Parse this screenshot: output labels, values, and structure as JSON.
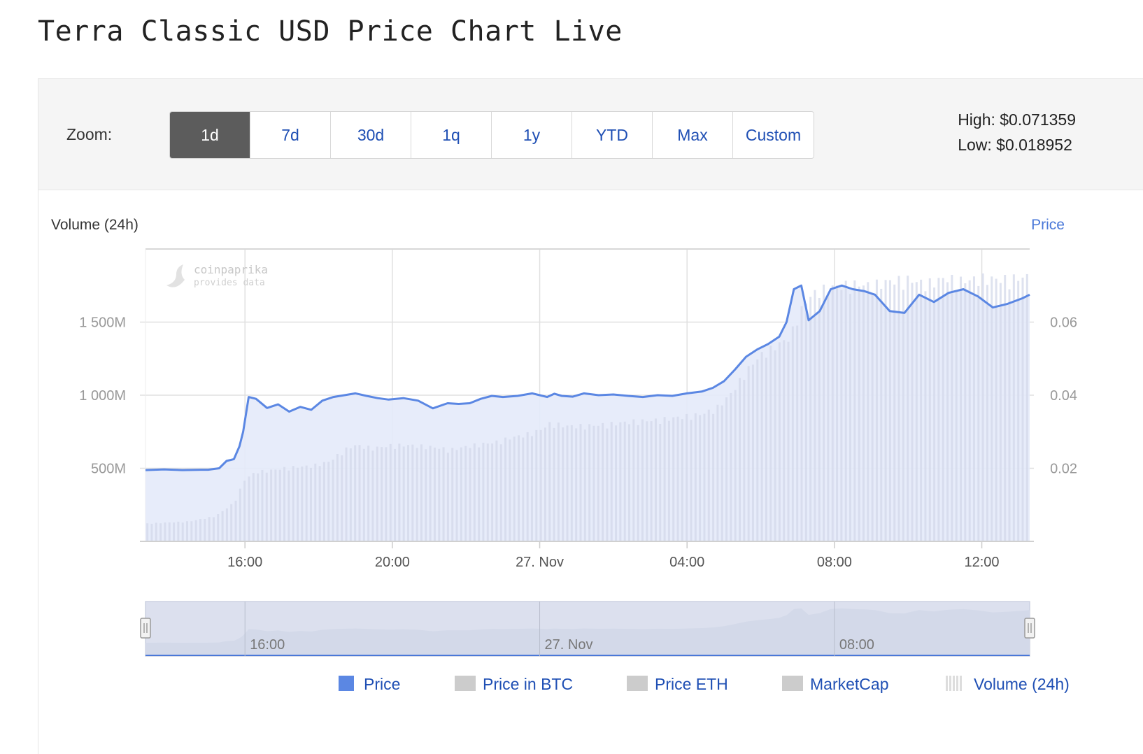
{
  "page_title": "Terra Classic USD Price Chart Live",
  "toolbar": {
    "zoom_label": "Zoom:",
    "buttons": [
      {
        "label": "1d",
        "active": true
      },
      {
        "label": "7d",
        "active": false
      },
      {
        "label": "30d",
        "active": false
      },
      {
        "label": "1q",
        "active": false
      },
      {
        "label": "1y",
        "active": false
      },
      {
        "label": "YTD",
        "active": false
      },
      {
        "label": "Max",
        "active": false
      },
      {
        "label": "Custom",
        "active": false
      }
    ],
    "high_label": "High: $0.071359",
    "low_label": "Low: $0.018952"
  },
  "watermark": {
    "line1": "coinpaprika",
    "line2": "provides data"
  },
  "colors": {
    "price_line": "#5b87e3",
    "price_fill": "#e4eafa",
    "volume_bar": "#d3d8ea",
    "grid": "#e0e0e0",
    "axis_text": "#999999",
    "link_blue": "#1f4fb4",
    "legend_gray": "#cccccc"
  },
  "chart_data": {
    "type": "line",
    "title": "",
    "left_axis_label": "Volume (24h)",
    "right_axis_label": "Price",
    "x_tick_labels": [
      "16:00",
      "20:00",
      "27. Nov",
      "04:00",
      "08:00",
      "12:00"
    ],
    "x_ticks_hours": [
      16,
      20,
      24,
      28,
      32,
      36
    ],
    "x_range_hours": [
      13.3,
      37.3
    ],
    "left_ticks": [
      {
        "value": 500,
        "label": "500M"
      },
      {
        "value": 1000,
        "label": "1 000M"
      },
      {
        "value": 1500,
        "label": "1 500M"
      }
    ],
    "right_ticks": [
      {
        "value": 0.02,
        "label": "0.02"
      },
      {
        "value": 0.04,
        "label": "0.04"
      },
      {
        "value": 0.06,
        "label": "0.06"
      }
    ],
    "volume_range_millions": [
      0,
      2000
    ],
    "price_range": [
      0,
      0.08
    ],
    "grid": true,
    "series": [
      {
        "name": "Price",
        "x_hours": [
          13.3,
          13.8,
          14.3,
          14.8,
          15.0,
          15.3,
          15.5,
          15.7,
          15.85,
          15.95,
          16.1,
          16.3,
          16.6,
          16.9,
          17.2,
          17.5,
          17.8,
          18.1,
          18.4,
          18.7,
          19.0,
          19.3,
          19.6,
          19.9,
          20.3,
          20.7,
          21.1,
          21.5,
          21.8,
          22.1,
          22.4,
          22.7,
          23.0,
          23.4,
          23.8,
          24.0,
          24.2,
          24.4,
          24.6,
          24.9,
          25.2,
          25.6,
          26.0,
          26.4,
          26.8,
          27.2,
          27.6,
          28.0,
          28.4,
          28.7,
          29.0,
          29.3,
          29.6,
          29.9,
          30.2,
          30.5,
          30.7,
          30.9,
          31.1,
          31.3,
          31.6,
          31.9,
          32.2,
          32.5,
          32.8,
          33.1,
          33.5,
          33.9,
          34.3,
          34.7,
          35.1,
          35.5,
          35.9,
          36.3,
          36.7,
          37.1,
          37.3
        ],
        "values": [
          0.0195,
          0.0197,
          0.0195,
          0.0196,
          0.0196,
          0.02,
          0.022,
          0.0225,
          0.026,
          0.03,
          0.0395,
          0.039,
          0.0365,
          0.0375,
          0.0355,
          0.0368,
          0.036,
          0.0385,
          0.0395,
          0.04,
          0.0405,
          0.0398,
          0.0392,
          0.0388,
          0.0392,
          0.0385,
          0.0364,
          0.0378,
          0.0376,
          0.0378,
          0.039,
          0.0398,
          0.0395,
          0.0398,
          0.0405,
          0.04,
          0.0395,
          0.0404,
          0.0398,
          0.0396,
          0.0405,
          0.04,
          0.0402,
          0.0398,
          0.0395,
          0.04,
          0.0398,
          0.0405,
          0.041,
          0.042,
          0.0438,
          0.047,
          0.0505,
          0.0525,
          0.054,
          0.056,
          0.06,
          0.069,
          0.07,
          0.0605,
          0.063,
          0.069,
          0.07,
          0.069,
          0.0685,
          0.0675,
          0.063,
          0.0625,
          0.0675,
          0.0655,
          0.068,
          0.069,
          0.067,
          0.064,
          0.065,
          0.0665,
          0.0675
        ]
      },
      {
        "name": "Volume (24h)",
        "x_hours": [
          13.3,
          14.5,
          15.2,
          15.7,
          16.0,
          16.3,
          16.7,
          17.2,
          17.8,
          18.3,
          18.7,
          19.0,
          19.5,
          20.0,
          20.5,
          21.0,
          21.6,
          22.2,
          22.8,
          23.2,
          23.6,
          24.0,
          24.3,
          24.7,
          25.2,
          25.8,
          26.5,
          27.2,
          27.8,
          28.4,
          28.8,
          29.2,
          29.6,
          30.0,
          30.4,
          30.8,
          31.0,
          31.3,
          31.6,
          32.0,
          32.5,
          33.0,
          33.5,
          34.0,
          34.5,
          35.0,
          35.5,
          36.0,
          36.5,
          37.0,
          37.3
        ],
        "values": [
          120,
          135,
          170,
          260,
          420,
          470,
          480,
          500,
          510,
          540,
          620,
          650,
          630,
          650,
          650,
          640,
          620,
          650,
          670,
          700,
          720,
          750,
          800,
          780,
          780,
          790,
          810,
          820,
          840,
          860,
          900,
          1000,
          1150,
          1260,
          1320,
          1380,
          1520,
          1650,
          1700,
          1720,
          1740,
          1730,
          1760,
          1770,
          1740,
          1780,
          1760,
          1780,
          1770,
          1780,
          1790
        ]
      }
    ],
    "navigator_tick_labels": [
      "16:00",
      "27. Nov",
      "08:00"
    ],
    "legend": [
      "Price",
      "Price in BTC",
      "Price ETH",
      "MarketCap",
      "Volume (24h)"
    ],
    "legend_placement": "bottom"
  }
}
